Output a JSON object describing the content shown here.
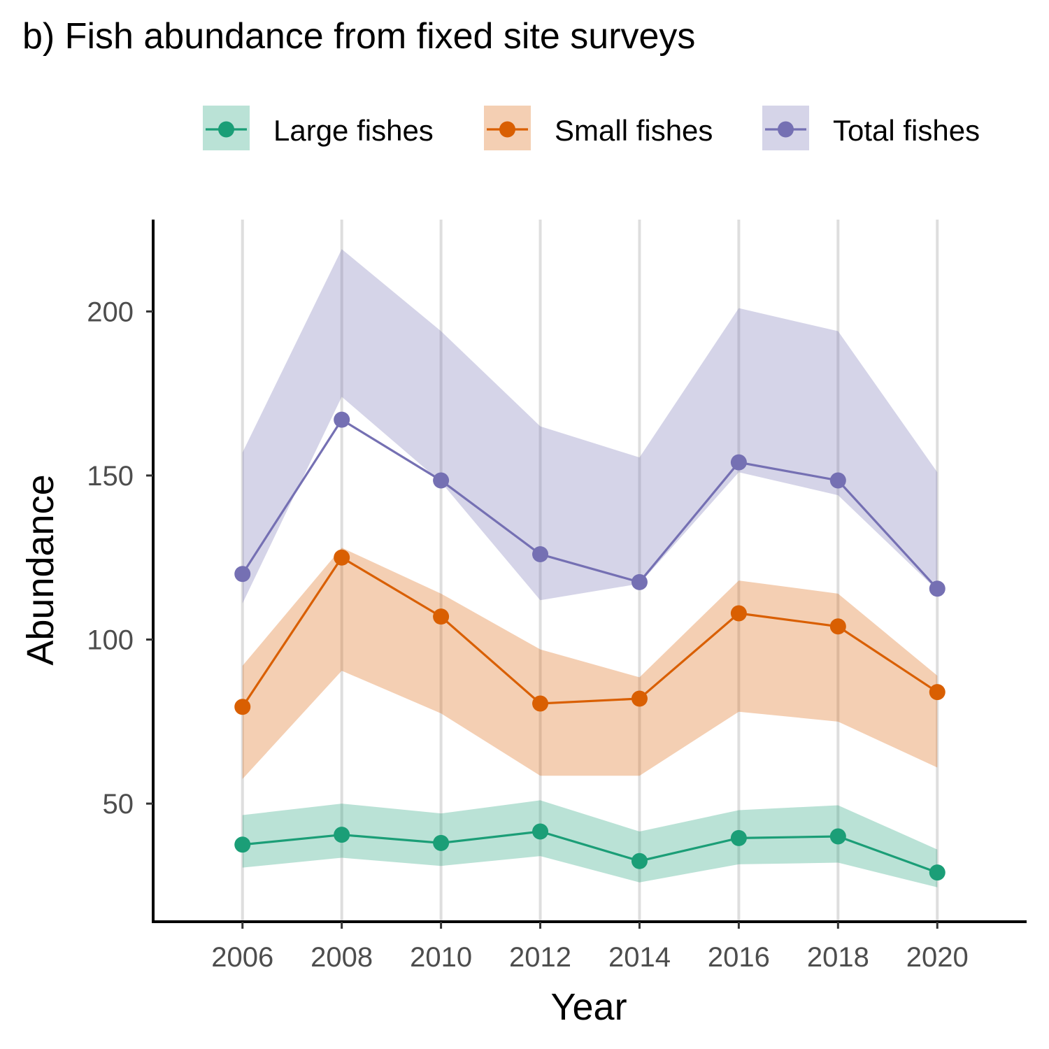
{
  "title": "b) Fish abundance from fixed site surveys",
  "chart_data": {
    "type": "line",
    "xlabel": "Year",
    "ylabel": "Abundance",
    "x": [
      2006,
      2008,
      2010,
      2012,
      2014,
      2016,
      2018,
      2020
    ],
    "xlim": [
      2004.2,
      2021.8
    ],
    "ylim": [
      14,
      228
    ],
    "x_ticks": [
      2006,
      2008,
      2010,
      2012,
      2014,
      2016,
      2018,
      2020
    ],
    "y_ticks": [
      50,
      100,
      150,
      200
    ],
    "grid": "vertical major gridlines only",
    "legend_position": "top-right",
    "series": [
      {
        "name": "Total fishes",
        "color": "#7570b3",
        "values": [
          120,
          167,
          148.5,
          126,
          117.5,
          154,
          148.5,
          115.5
        ],
        "lower": [
          111,
          174,
          148,
          112,
          117,
          151,
          144,
          115
        ],
        "upper": [
          157,
          219,
          194,
          165,
          155.5,
          201,
          194,
          151
        ]
      },
      {
        "name": "Small fishes",
        "color": "#d95f02",
        "values": [
          79.5,
          125,
          107,
          80.5,
          82,
          108,
          104,
          84
        ],
        "lower": [
          57.5,
          90.5,
          77.5,
          58.5,
          58.5,
          78,
          75,
          61
        ],
        "upper": [
          92,
          128,
          114,
          97,
          88.5,
          118,
          114,
          89
        ]
      },
      {
        "name": "Large fishes",
        "color": "#1b9e77",
        "values": [
          37.5,
          40.5,
          38,
          41.5,
          32.5,
          39.5,
          40,
          29
        ],
        "lower": [
          30.5,
          33.5,
          31,
          34,
          26,
          31.5,
          32,
          24.5
        ],
        "upper": [
          46.5,
          50,
          47,
          51,
          41.5,
          48,
          49.5,
          36
        ]
      }
    ]
  }
}
